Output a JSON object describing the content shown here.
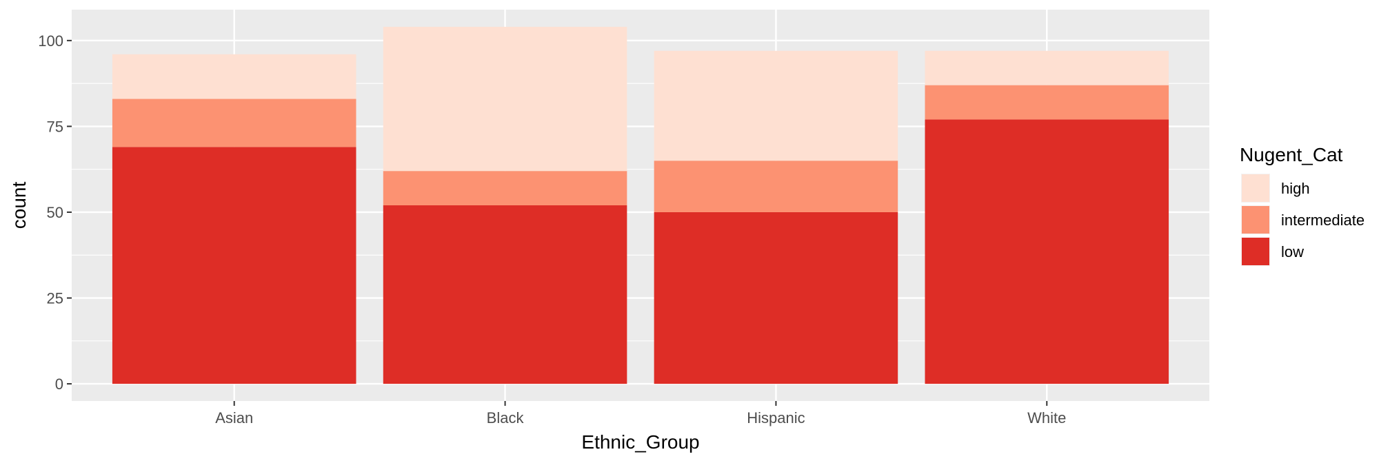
{
  "chart_data": {
    "type": "bar",
    "stacked": true,
    "xlabel": "Ethnic_Group",
    "ylabel": "count",
    "categories": [
      "Asian",
      "Black",
      "Hispanic",
      "White"
    ],
    "series": [
      {
        "name": "low",
        "values": [
          69,
          52,
          50,
          77
        ],
        "color": "#de2d26"
      },
      {
        "name": "intermediate",
        "values": [
          14,
          10,
          15,
          10
        ],
        "color": "#fc9272"
      },
      {
        "name": "high",
        "values": [
          13,
          42,
          32,
          10
        ],
        "color": "#fee0d2"
      }
    ],
    "ylim": [
      -5,
      109
    ],
    "yticks": [
      0,
      25,
      50,
      75,
      100
    ],
    "grid": true,
    "legend": {
      "title": "Nugent_Cat",
      "position": "right",
      "items": [
        {
          "label": "high",
          "color": "#fee0d2"
        },
        {
          "label": "intermediate",
          "color": "#fc9272"
        },
        {
          "label": "low",
          "color": "#de2d26"
        }
      ]
    },
    "panel_background": "#ebebeb"
  }
}
